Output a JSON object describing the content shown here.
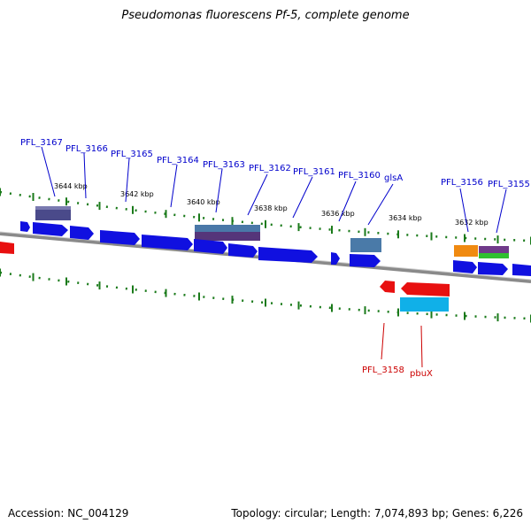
{
  "title": "Pseudomonas fluorescens Pf-5, complete genome",
  "footer": {
    "accession": "Accession: NC_004129",
    "topology": "Topology: circular; Length: 7,074,893 bp; Genes: 6,226"
  },
  "colors": {
    "forward_gene": "#1010e0",
    "reverse_gene": "#e81010",
    "backbone": "#888888",
    "tick": "#1a7a1a",
    "label_forward": "#0000cc",
    "label_reverse": "#cc0000"
  },
  "scale_labels": [
    "3644 kbp",
    "3642 kbp",
    "3640 kbp",
    "3638 kbp",
    "3636 kbp",
    "3634 kbp",
    "3632 kbp"
  ],
  "forward_labels": [
    "PFL_3167",
    "PFL_3166",
    "PFL_3165",
    "PFL_3164",
    "PFL_3163",
    "PFL_3162",
    "PFL_3161",
    "PFL_3160",
    "glsA",
    "PFL_3156",
    "PFL_3155"
  ],
  "reverse_labels": [
    "PFL_3158",
    "pbuX"
  ]
}
